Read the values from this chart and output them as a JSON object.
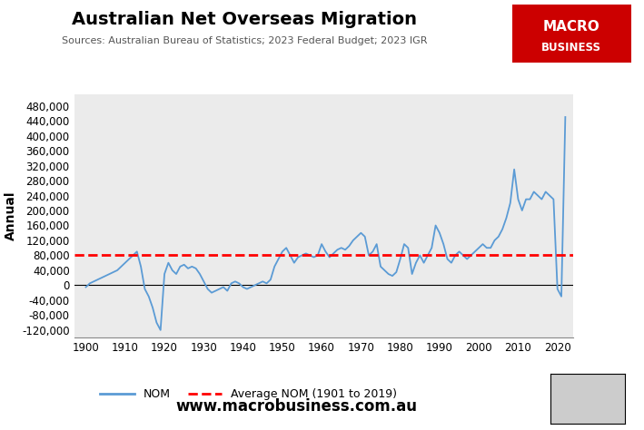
{
  "title": "Australian Net Overseas Migration",
  "subtitle": "Sources: Australian Bureau of Statistics; 2023 Federal Budget; 2023 IGR",
  "ylabel": "Annual",
  "average_label": "Average NOM (1901 to 2019)",
  "average_value": 80000,
  "website": "www.macrobusiness.com.au",
  "logo_text_line1": "MACRO",
  "logo_text_line2": "BUSINESS",
  "logo_bg": "#cc0000",
  "line_color": "#5b9bd5",
  "avg_line_color": "#ff0000",
  "fig_bg": "#ffffff",
  "plot_bg": "#ebebeb",
  "title_color": "#000000",
  "subtitle_color": "#555555",
  "years": [
    1900,
    1901,
    1902,
    1903,
    1904,
    1905,
    1906,
    1907,
    1908,
    1909,
    1910,
    1911,
    1912,
    1913,
    1914,
    1915,
    1916,
    1917,
    1918,
    1919,
    1920,
    1921,
    1922,
    1923,
    1924,
    1925,
    1926,
    1927,
    1928,
    1929,
    1930,
    1931,
    1932,
    1933,
    1934,
    1935,
    1936,
    1937,
    1938,
    1939,
    1940,
    1941,
    1942,
    1943,
    1944,
    1945,
    1946,
    1947,
    1948,
    1949,
    1950,
    1951,
    1952,
    1953,
    1954,
    1955,
    1956,
    1957,
    1958,
    1959,
    1960,
    1961,
    1962,
    1963,
    1964,
    1965,
    1966,
    1967,
    1968,
    1969,
    1970,
    1971,
    1972,
    1973,
    1974,
    1975,
    1976,
    1977,
    1978,
    1979,
    1980,
    1981,
    1982,
    1983,
    1984,
    1985,
    1986,
    1987,
    1988,
    1989,
    1990,
    1991,
    1992,
    1993,
    1994,
    1995,
    1996,
    1997,
    1998,
    1999,
    2000,
    2001,
    2002,
    2003,
    2004,
    2005,
    2006,
    2007,
    2008,
    2009,
    2010,
    2011,
    2012,
    2013,
    2014,
    2015,
    2016,
    2017,
    2018,
    2019,
    2020,
    2021,
    2022
  ],
  "nom": [
    -5000,
    5000,
    10000,
    15000,
    20000,
    25000,
    30000,
    35000,
    40000,
    50000,
    60000,
    70000,
    80000,
    90000,
    50000,
    -10000,
    -30000,
    -60000,
    -100000,
    -120000,
    30000,
    60000,
    40000,
    30000,
    50000,
    55000,
    45000,
    50000,
    45000,
    30000,
    10000,
    -10000,
    -20000,
    -15000,
    -10000,
    -5000,
    -15000,
    5000,
    10000,
    5000,
    -5000,
    -10000,
    -5000,
    0,
    5000,
    10000,
    5000,
    15000,
    50000,
    70000,
    90000,
    100000,
    80000,
    60000,
    75000,
    80000,
    85000,
    80000,
    75000,
    80000,
    110000,
    90000,
    75000,
    85000,
    95000,
    100000,
    95000,
    105000,
    120000,
    130000,
    140000,
    130000,
    80000,
    90000,
    110000,
    50000,
    40000,
    30000,
    25000,
    35000,
    70000,
    110000,
    100000,
    30000,
    60000,
    80000,
    60000,
    80000,
    100000,
    160000,
    140000,
    110000,
    70000,
    60000,
    80000,
    90000,
    80000,
    70000,
    80000,
    90000,
    100000,
    110000,
    100000,
    100000,
    120000,
    130000,
    150000,
    180000,
    220000,
    310000,
    230000,
    200000,
    230000,
    230000,
    250000,
    240000,
    230000,
    250000,
    240000,
    230000,
    -10000,
    -30000,
    450000
  ],
  "xlim": [
    1897,
    2024
  ],
  "ylim": [
    -140000,
    510000
  ],
  "yticks": [
    -120000,
    -80000,
    -40000,
    0,
    40000,
    80000,
    120000,
    160000,
    200000,
    240000,
    280000,
    320000,
    360000,
    400000,
    440000,
    480000
  ],
  "xticks": [
    1900,
    1910,
    1920,
    1930,
    1940,
    1950,
    1960,
    1970,
    1980,
    1990,
    2000,
    2010,
    2020
  ]
}
